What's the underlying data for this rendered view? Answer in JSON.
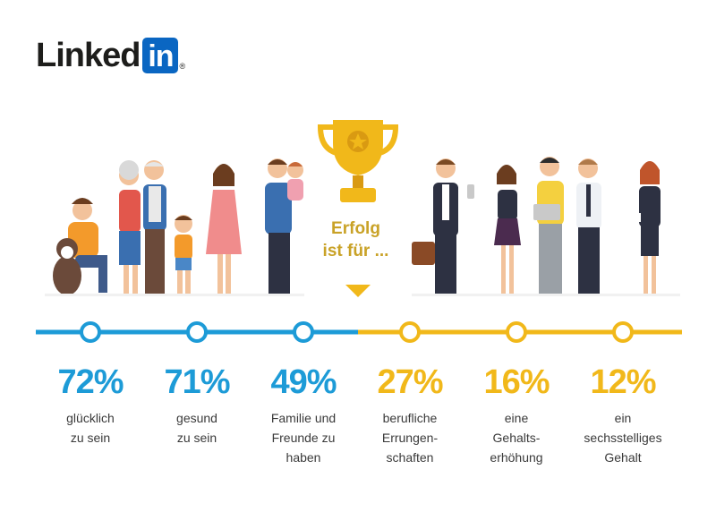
{
  "brand": {
    "word": "Linked",
    "box": "in",
    "reg": "®"
  },
  "center": {
    "line1": "Erfolg",
    "line2": "ist für ..."
  },
  "colors": {
    "blue": "#1d9bd7",
    "gold": "#f1b81a",
    "label_gold": "#c9a227"
  },
  "stats": [
    {
      "value": "72%",
      "label": "glücklich\nzu sein",
      "color": "blue"
    },
    {
      "value": "71%",
      "label": "gesund\nzu sein",
      "color": "blue"
    },
    {
      "value": "49%",
      "label": "Familie und\nFreunde zu\nhaben",
      "color": "blue"
    },
    {
      "value": "27%",
      "label": "berufliche\nErrungen-\nschaften",
      "color": "gold"
    },
    {
      "value": "16%",
      "label": "eine\nGehalts-\nerhöhung",
      "color": "gold"
    },
    {
      "value": "12%",
      "label": "ein\nsechsstelliges\nGehalt",
      "color": "gold"
    }
  ]
}
